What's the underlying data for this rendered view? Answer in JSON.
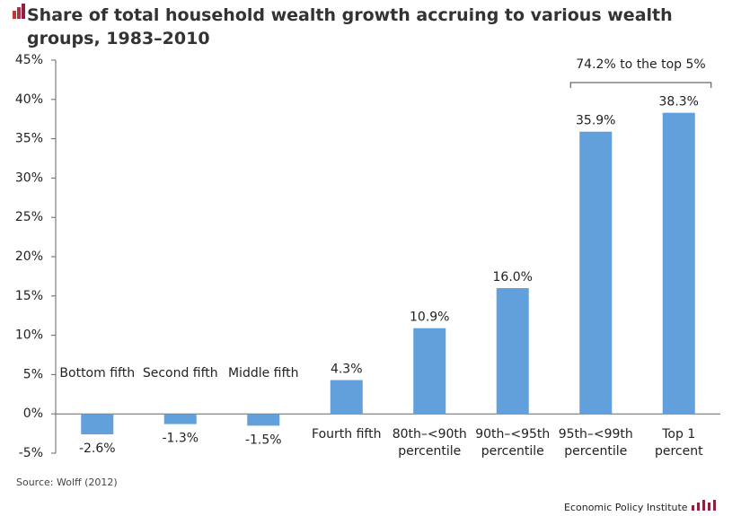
{
  "chart_data": {
    "type": "bar",
    "title": "Share of total household wealth growth accruing to various wealth groups, 1983–2010",
    "categories": [
      "Bottom fifth",
      "Second fifth",
      "Middle fifth",
      "Fourth fifth",
      "80th–<90th percentile",
      "90th–<95th percentile",
      "95th–<99th percentile",
      "Top 1 percent"
    ],
    "values": [
      -2.6,
      -1.3,
      -1.5,
      4.3,
      10.9,
      16.0,
      35.9,
      38.3
    ],
    "value_labels": [
      "-2.6%",
      "-1.3%",
      "-1.5%",
      "4.3%",
      "10.9%",
      "16.0%",
      "35.9%",
      "38.3%"
    ],
    "color": "#62a0dc",
    "ylim": [
      -5,
      45
    ],
    "yticks": [
      {
        "value": -5,
        "label": "-5%"
      },
      {
        "value": 0,
        "label": "0%"
      },
      {
        "value": 5,
        "label": "5%"
      },
      {
        "value": 10,
        "label": "10%"
      },
      {
        "value": 15,
        "label": "15%"
      },
      {
        "value": 20,
        "label": "20%"
      },
      {
        "value": 25,
        "label": "25%"
      },
      {
        "value": 30,
        "label": "30%"
      },
      {
        "value": 35,
        "label": "35%"
      },
      {
        "value": 40,
        "label": "40%"
      },
      {
        "value": 45,
        "label": "45%"
      }
    ],
    "grid": false,
    "annotation": "74.2% to the top 5%",
    "source": "Source: Wolff (2012)",
    "credit": "Economic Policy Institute"
  }
}
